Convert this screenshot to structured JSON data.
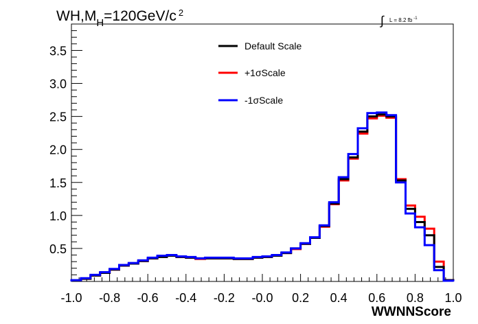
{
  "chart_data": {
    "type": "line",
    "title_main": "WH,M",
    "title_sub": "H",
    "title_mass": "=120GeV/c",
    "title_sup": "2",
    "lumi_symbol": "∫",
    "lumi_text": "L = 8.2 fb",
    "lumi_sup": "-1",
    "xlabel": "WWNNScore",
    "ylabel": "",
    "xlim": [
      -1.0,
      1.0
    ],
    "ylim": [
      0,
      3.9
    ],
    "x_ticks": [
      "-1.0",
      "-0.8",
      "-0.6",
      "-0.4",
      "-0.2",
      "-0.0",
      "0.2",
      "0.4",
      "0.6",
      "0.8",
      "1.0"
    ],
    "y_ticks": [
      "0.5",
      "1.0",
      "1.5",
      "2.0",
      "2.5",
      "3.0",
      "3.5"
    ],
    "legend_placement": "top-center",
    "bin_edges": [
      -1.0,
      -0.95,
      -0.9,
      -0.85,
      -0.8,
      -0.75,
      -0.7,
      -0.65,
      -0.6,
      -0.55,
      -0.5,
      -0.45,
      -0.4,
      -0.35,
      -0.3,
      -0.25,
      -0.2,
      -0.15,
      -0.1,
      -0.05,
      0.0,
      0.05,
      0.1,
      0.15,
      0.2,
      0.25,
      0.3,
      0.35,
      0.4,
      0.45,
      0.5,
      0.55,
      0.6,
      0.65,
      0.7,
      0.75,
      0.8,
      0.85,
      0.9,
      0.95,
      1.0
    ],
    "series": [
      {
        "name": "+1σScale",
        "color": "#ff0000",
        "values": [
          0.01,
          0.04,
          0.09,
          0.13,
          0.18,
          0.24,
          0.27,
          0.31,
          0.35,
          0.38,
          0.39,
          0.37,
          0.36,
          0.34,
          0.35,
          0.35,
          0.35,
          0.34,
          0.34,
          0.36,
          0.37,
          0.39,
          0.43,
          0.49,
          0.57,
          0.66,
          0.83,
          1.17,
          1.53,
          1.86,
          2.24,
          2.47,
          2.51,
          2.48,
          1.55,
          1.15,
          0.98,
          0.8,
          0.3,
          0.02
        ]
      },
      {
        "name": "Default Scale",
        "color": "#000000",
        "values": [
          0.01,
          0.04,
          0.09,
          0.13,
          0.18,
          0.24,
          0.27,
          0.31,
          0.35,
          0.37,
          0.39,
          0.37,
          0.36,
          0.35,
          0.35,
          0.35,
          0.35,
          0.34,
          0.34,
          0.36,
          0.37,
          0.39,
          0.43,
          0.5,
          0.57,
          0.66,
          0.84,
          1.18,
          1.55,
          1.88,
          2.27,
          2.5,
          2.53,
          2.5,
          1.53,
          1.1,
          0.9,
          0.7,
          0.22,
          0.02
        ]
      },
      {
        "name": "-1σScale",
        "color": "#0000ff",
        "values": [
          0.02,
          0.05,
          0.1,
          0.14,
          0.19,
          0.25,
          0.28,
          0.32,
          0.36,
          0.39,
          0.4,
          0.38,
          0.37,
          0.35,
          0.36,
          0.36,
          0.36,
          0.35,
          0.35,
          0.37,
          0.38,
          0.4,
          0.44,
          0.5,
          0.58,
          0.67,
          0.85,
          1.2,
          1.58,
          1.93,
          2.32,
          2.55,
          2.56,
          2.52,
          1.5,
          1.03,
          0.82,
          0.55,
          0.17,
          0.01
        ]
      }
    ]
  }
}
